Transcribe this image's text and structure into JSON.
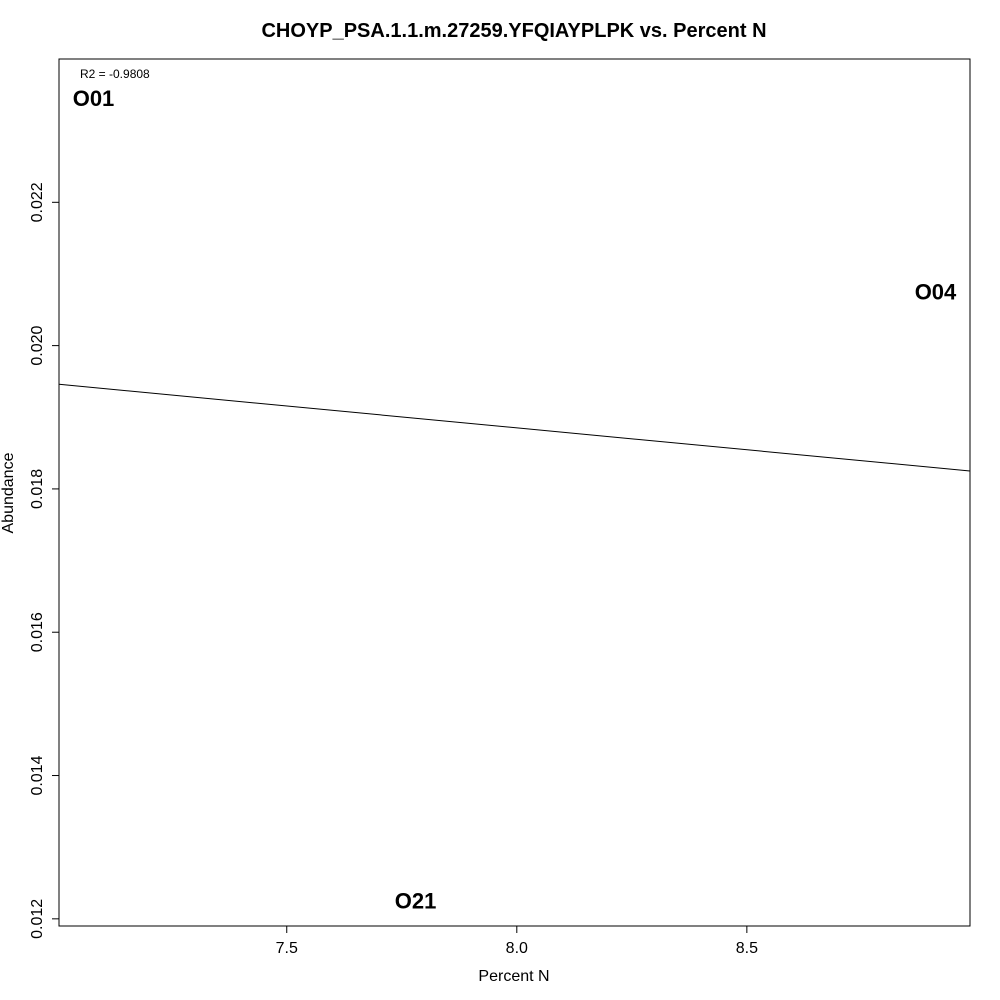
{
  "chart_data": {
    "type": "scatter",
    "title": "CHOYP_PSA.1.1.m.27259.YFQIAYPLPK vs. Percent N",
    "xlabel": "Percent N",
    "ylabel": "Abundance",
    "xlim": [
      7.005,
      8.985
    ],
    "ylim": [
      0.0119,
      0.024
    ],
    "x_ticks": [
      "7.5",
      "8.0",
      "8.5"
    ],
    "x_tick_values": [
      7.5,
      8.0,
      8.5
    ],
    "y_ticks": [
      "0.012",
      "0.014",
      "0.016",
      "0.018",
      "0.020",
      "0.022"
    ],
    "y_tick_values": [
      0.012,
      0.014,
      0.016,
      0.018,
      0.02,
      0.022
    ],
    "points": [
      {
        "label": "O01",
        "x": 7.08,
        "y": 0.02345
      },
      {
        "label": "O04",
        "x": 8.91,
        "y": 0.02075
      },
      {
        "label": "O21",
        "x": 7.78,
        "y": 0.01225
      }
    ],
    "fit_line": {
      "x": [
        7.005,
        8.985
      ],
      "y": [
        0.01946,
        0.01825
      ]
    },
    "annotation": "R2 = -0.9808",
    "grid": false,
    "legend": "none"
  }
}
